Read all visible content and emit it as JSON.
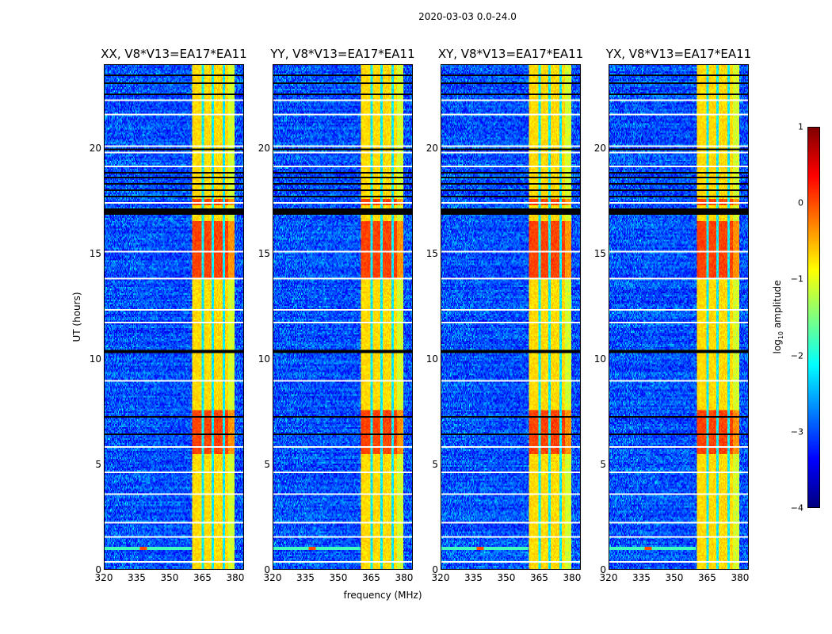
{
  "chart_data": {
    "type": "heatmap",
    "title": "2020-03-03 0.0-24.0",
    "xlabel": "frequency (MHz)",
    "ylabel": "UT (hours)",
    "xlim": [
      320,
      384
    ],
    "ylim": [
      0,
      24
    ],
    "xticks": [
      "320",
      "335",
      "350",
      "365",
      "380"
    ],
    "yticks": [
      "0",
      "5",
      "10",
      "15",
      "20"
    ],
    "panels": [
      {
        "title": "XX, V8*V13=EA17*EA11",
        "seed": 11
      },
      {
        "title": "YY, V8*V13=EA17*EA11",
        "seed": 23
      },
      {
        "title": "XY, V8*V13=EA17*EA11",
        "seed": 37
      },
      {
        "title": "YX, V8*V13=EA17*EA11",
        "seed": 53
      }
    ],
    "colorbar": {
      "label_main": "log",
      "label_sub": "10",
      "label_rest": " amplitude",
      "colormap": "jet",
      "range": [
        -4,
        1
      ],
      "ticks": [
        "1",
        "0",
        "−1",
        "−2",
        "−3",
        "−4"
      ]
    },
    "model": {
      "background_log_amp": -3.0,
      "emission_band_mhz": [
        360.5,
        380
      ],
      "emission_log_amp": -0.8,
      "band_gaps_mhz": [
        365.3,
        370,
        375
      ],
      "strong_hours": [
        [
          5.5,
          7.6
        ],
        [
          13.9,
          16.6
        ],
        [
          17.3,
          17.6
        ]
      ],
      "flagged_black_hours": [
        [
          10.25,
          10.4
        ],
        [
          16.85,
          17.2
        ],
        [
          17.7,
          17.8
        ],
        [
          18.0,
          18.1
        ],
        [
          18.3,
          18.35
        ],
        [
          18.6,
          18.65
        ],
        [
          18.85,
          18.9
        ],
        [
          19.25,
          19.3
        ],
        [
          19.95,
          20.0
        ],
        [
          21.2,
          21.25
        ],
        [
          22.6,
          22.65
        ],
        [
          23.1,
          23.15
        ],
        [
          23.5,
          23.55
        ],
        [
          3.2,
          3.25
        ],
        [
          4.1,
          4.15
        ],
        [
          5.3,
          5.35
        ],
        [
          6.4,
          6.45
        ],
        [
          7.2,
          7.25
        ]
      ],
      "missing_white_hours": [
        [
          0.3,
          0.35
        ],
        [
          1.5,
          1.6
        ],
        [
          2.0,
          2.05
        ],
        [
          2.2,
          2.25
        ],
        [
          3.5,
          3.6
        ],
        [
          4.6,
          4.65
        ],
        [
          5.8,
          5.85
        ],
        [
          7.7,
          7.75
        ],
        [
          8.0,
          8.05
        ],
        [
          8.9,
          9.0
        ],
        [
          11.7,
          11.8
        ],
        [
          12.3,
          12.35
        ],
        [
          13.8,
          13.85
        ],
        [
          15.1,
          15.15
        ],
        [
          17.4,
          17.45
        ],
        [
          18.2,
          18.25
        ],
        [
          19.1,
          19.2
        ],
        [
          19.8,
          19.9
        ],
        [
          20.1,
          20.15
        ],
        [
          21.6,
          21.7
        ],
        [
          21.95,
          22.0
        ],
        [
          22.3,
          22.35
        ]
      ],
      "rfi_hours": [
        1.0
      ]
    }
  }
}
